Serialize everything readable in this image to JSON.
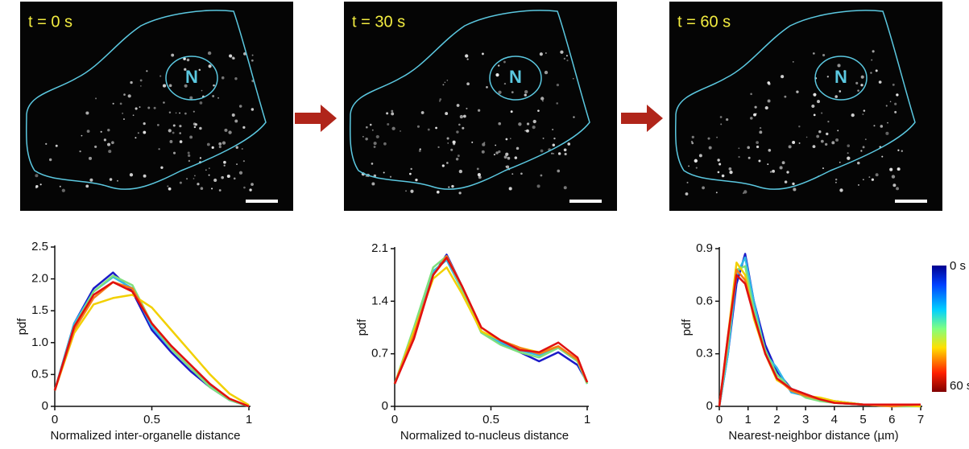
{
  "panels": [
    {
      "time_label": "t = 0 s",
      "nucleus_label": "N"
    },
    {
      "time_label": "t = 30 s",
      "nucleus_label": "N"
    },
    {
      "time_label": "t = 60 s",
      "nucleus_label": "N"
    }
  ],
  "colorbar": {
    "labels": [
      "0 s",
      "60 s"
    ]
  },
  "chart_data": [
    {
      "type": "line",
      "x_label": "Normalized inter-organelle distance",
      "y_label": "pdf",
      "xlim": [
        0,
        1
      ],
      "xticks": [
        0,
        0.5,
        1
      ],
      "ylim": [
        0,
        2.5
      ],
      "yticks": [
        0,
        0.5,
        {
          "value": 1,
          "label": "1.0"
        },
        1.5,
        {
          "value": 2,
          "label": "2.0"
        },
        2.5
      ],
      "x": [
        0,
        0.1,
        0.2,
        0.3,
        0.4,
        0.5,
        0.6,
        0.7,
        0.8,
        0.9,
        1
      ],
      "series": [
        {
          "color": "#1a1ac8",
          "values": [
            0.25,
            1.3,
            1.85,
            2.1,
            1.8,
            1.2,
            0.85,
            0.55,
            0.3,
            0.1,
            0
          ]
        },
        {
          "color": "#30b8e8",
          "values": [
            0.25,
            1.3,
            1.8,
            2.03,
            1.85,
            1.25,
            0.9,
            0.6,
            0.32,
            0.1,
            0
          ]
        },
        {
          "color": "#7ee07e",
          "values": [
            0.25,
            1.25,
            1.8,
            2.05,
            1.9,
            1.3,
            0.9,
            0.6,
            0.3,
            0.1,
            0
          ]
        },
        {
          "color": "#f2d000",
          "values": [
            0.25,
            1.15,
            1.6,
            1.7,
            1.75,
            1.55,
            1.2,
            0.85,
            0.5,
            0.2,
            0.02
          ]
        },
        {
          "color": "#f57a1a",
          "values": [
            0.25,
            1.2,
            1.7,
            1.95,
            1.85,
            1.3,
            0.95,
            0.65,
            0.35,
            0.12,
            0
          ]
        },
        {
          "color": "#e01010",
          "values": [
            0.25,
            1.25,
            1.75,
            1.95,
            1.8,
            1.3,
            0.95,
            0.65,
            0.35,
            0.12,
            0
          ]
        }
      ]
    },
    {
      "type": "line",
      "x_label": "Normalized to-nucleus distance",
      "y_label": "pdf",
      "xlim": [
        0,
        1
      ],
      "xticks": [
        0,
        0.5,
        1
      ],
      "ylim": [
        0,
        2.1
      ],
      "yticks": [
        0,
        0.7,
        1.4,
        2.1
      ],
      "x": [
        0,
        0.1,
        0.2,
        0.27,
        0.35,
        0.45,
        0.55,
        0.65,
        0.75,
        0.85,
        0.95,
        1
      ],
      "series": [
        {
          "color": "#1a1ac8",
          "values": [
            0.3,
            0.95,
            1.75,
            2.02,
            1.6,
            1.0,
            0.85,
            0.72,
            0.6,
            0.72,
            0.55,
            0.32
          ]
        },
        {
          "color": "#30b8e8",
          "values": [
            0.3,
            1.0,
            1.8,
            1.95,
            1.55,
            1.0,
            0.85,
            0.75,
            0.68,
            0.78,
            0.6,
            0.3
          ]
        },
        {
          "color": "#7ee07e",
          "values": [
            0.3,
            1.05,
            1.85,
            2.0,
            1.55,
            0.98,
            0.82,
            0.72,
            0.65,
            0.78,
            0.6,
            0.3
          ]
        },
        {
          "color": "#f2d000",
          "values": [
            0.3,
            1.0,
            1.7,
            1.85,
            1.5,
            1.0,
            0.88,
            0.78,
            0.72,
            0.8,
            0.62,
            0.32
          ]
        },
        {
          "color": "#f57a1a",
          "values": [
            0.3,
            0.95,
            1.75,
            2.0,
            1.6,
            1.05,
            0.88,
            0.78,
            0.7,
            0.8,
            0.62,
            0.32
          ]
        },
        {
          "color": "#e01010",
          "values": [
            0.3,
            0.9,
            1.75,
            1.98,
            1.6,
            1.05,
            0.88,
            0.75,
            0.72,
            0.85,
            0.65,
            0.32
          ]
        }
      ]
    },
    {
      "type": "line",
      "x_label": "Nearest-neighbor distance (µm)",
      "y_label": "pdf",
      "xlim": [
        0,
        7
      ],
      "xticks": [
        0,
        1,
        2,
        3,
        4,
        5,
        6,
        7
      ],
      "ylim": [
        0,
        0.9
      ],
      "yticks": [
        0,
        0.3,
        0.6,
        0.9
      ],
      "x": [
        0,
        0.3,
        0.6,
        0.9,
        1.2,
        1.6,
        2,
        2.5,
        3,
        3.5,
        4,
        5,
        6,
        7
      ],
      "series": [
        {
          "color": "#1a1ac8",
          "values": [
            0,
            0.3,
            0.7,
            0.87,
            0.6,
            0.35,
            0.2,
            0.1,
            0.07,
            0.04,
            0.03,
            0.01,
            0.01,
            0.01
          ]
        },
        {
          "color": "#30b8e8",
          "values": [
            0,
            0.3,
            0.75,
            0.85,
            0.6,
            0.3,
            0.22,
            0.08,
            0.06,
            0.04,
            0.02,
            0.01,
            0.01,
            0
          ]
        },
        {
          "color": "#7ee07e",
          "values": [
            0,
            0.35,
            0.78,
            0.8,
            0.55,
            0.32,
            0.18,
            0.1,
            0.05,
            0.03,
            0.02,
            0.01,
            0,
            0
          ]
        },
        {
          "color": "#f2d000",
          "values": [
            0,
            0.4,
            0.82,
            0.75,
            0.5,
            0.3,
            0.15,
            0.1,
            0.06,
            0.05,
            0.03,
            0.01,
            0.01,
            0
          ]
        },
        {
          "color": "#f57a1a",
          "values": [
            0,
            0.38,
            0.78,
            0.72,
            0.52,
            0.3,
            0.16,
            0.09,
            0.06,
            0.04,
            0.02,
            0.01,
            0,
            0.01
          ]
        },
        {
          "color": "#e01010",
          "values": [
            0,
            0.4,
            0.75,
            0.7,
            0.52,
            0.3,
            0.16,
            0.1,
            0.07,
            0.04,
            0.02,
            0.01,
            0.01,
            0.01
          ]
        }
      ]
    }
  ]
}
